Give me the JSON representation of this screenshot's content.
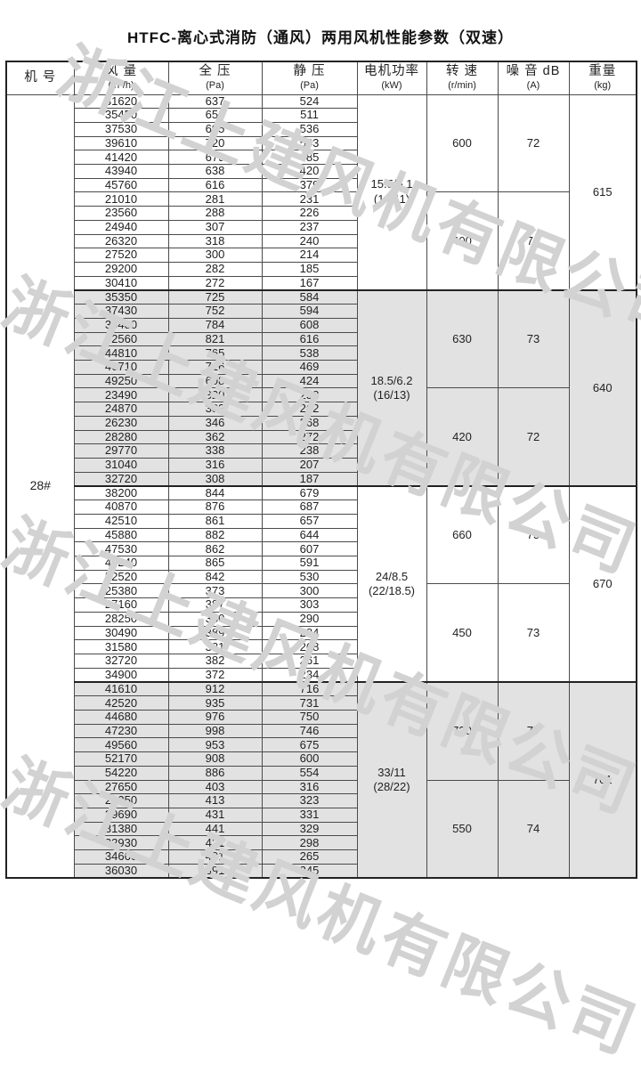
{
  "title": "HTFC-离心式消防（通风）两用风机性能参数（双速）",
  "watermark": {
    "text": "浙江上建风机有限公司"
  },
  "machine_no": "28#",
  "columns": [
    {
      "label": "机 号",
      "sub": ""
    },
    {
      "label": "风 量",
      "sub": "(m³/h)"
    },
    {
      "label": "全 压",
      "sub": "(Pa)"
    },
    {
      "label": "静 压",
      "sub": "(Pa)"
    },
    {
      "label": "电机功率",
      "sub": "(kW)"
    },
    {
      "label": "转 速",
      "sub": "(r/min)"
    },
    {
      "label": "噪 音 dB",
      "sub": "(A)"
    },
    {
      "label": "重量",
      "sub": "(kg)"
    }
  ],
  "groups": [
    {
      "shaded": false,
      "power_lines": [
        "15.5/5.1",
        "(14/11)"
      ],
      "weight": "615",
      "halves": [
        {
          "speed": "600",
          "noise": "72",
          "rows": [
            [
              "31620",
              "637",
              "524"
            ],
            [
              "35450",
              "653",
              "511"
            ],
            [
              "37530",
              "695",
              "536"
            ],
            [
              "39610",
              "720",
              "543"
            ],
            [
              "41420",
              "679",
              "485"
            ],
            [
              "43940",
              "638",
              "420"
            ],
            [
              "45760",
              "616",
              "379"
            ]
          ]
        },
        {
          "speed": "400",
          "noise": "70",
          "rows": [
            [
              "21010",
              "281",
              "231"
            ],
            [
              "23560",
              "288",
              "226"
            ],
            [
              "24940",
              "307",
              "237"
            ],
            [
              "26320",
              "318",
              "240"
            ],
            [
              "27520",
              "300",
              "214"
            ],
            [
              "29200",
              "282",
              "185"
            ],
            [
              "30410",
              "272",
              "167"
            ]
          ]
        }
      ]
    },
    {
      "shaded": true,
      "power_lines": [
        "18.5/6.2",
        "(16/13)"
      ],
      "weight": "640",
      "halves": [
        {
          "speed": "630",
          "noise": "73",
          "rows": [
            [
              "35350",
              "725",
              "584"
            ],
            [
              "37430",
              "752",
              "594"
            ],
            [
              "39480",
              "784",
              "608"
            ],
            [
              "42560",
              "821",
              "616"
            ],
            [
              "44810",
              "765",
              "538"
            ],
            [
              "46710",
              "716",
              "469"
            ],
            [
              "49250",
              "698",
              "424"
            ]
          ]
        },
        {
          "speed": "420",
          "noise": "72",
          "rows": [
            [
              "23490",
              "320",
              "258"
            ],
            [
              "24870",
              "332",
              "262"
            ],
            [
              "26230",
              "346",
              "268"
            ],
            [
              "28280",
              "362",
              "272"
            ],
            [
              "29770",
              "338",
              "238"
            ],
            [
              "31040",
              "316",
              "207"
            ],
            [
              "32720",
              "308",
              "187"
            ]
          ]
        }
      ]
    },
    {
      "shaded": false,
      "power_lines": [
        "24/8.5",
        "(22/18.5)"
      ],
      "weight": "670",
      "halves": [
        {
          "speed": "660",
          "noise": "75",
          "rows": [
            [
              "38200",
              "844",
              "679"
            ],
            [
              "40870",
              "876",
              "687"
            ],
            [
              "42510",
              "861",
              "657"
            ],
            [
              "45880",
              "882",
              "644"
            ],
            [
              "47530",
              "862",
              "607"
            ],
            [
              "49240",
              "865",
              "591"
            ],
            [
              "52520",
              "842",
              "530"
            ]
          ]
        },
        {
          "speed": "450",
          "noise": "73",
          "rows": [
            [
              "25380",
              "373",
              "300"
            ],
            [
              "27160",
              "387",
              "303"
            ],
            [
              "28250",
              "380",
              "290"
            ],
            [
              "30490",
              "389",
              "284"
            ],
            [
              "31580",
              "381",
              "268"
            ],
            [
              "32720",
              "382",
              "261"
            ],
            [
              "34900",
              "372",
              "234"
            ]
          ]
        }
      ]
    },
    {
      "shaded": true,
      "power_lines": [
        "33/11",
        "(28/22)"
      ],
      "weight": "701",
      "halves": [
        {
          "speed": "730",
          "noise": "77",
          "rows": [
            [
              "41610",
              "912",
              "716"
            ],
            [
              "42520",
              "935",
              "731"
            ],
            [
              "44680",
              "976",
              "750"
            ],
            [
              "47230",
              "998",
              "746"
            ],
            [
              "49560",
              "953",
              "675"
            ],
            [
              "52170",
              "908",
              "600"
            ],
            [
              "54220",
              "886",
              "554"
            ]
          ]
        },
        {
          "speed": "550",
          "noise": "74",
          "rows": [
            [
              "27650",
              "403",
              "316"
            ],
            [
              "28250",
              "413",
              "323"
            ],
            [
              "29690",
              "431",
              "331"
            ],
            [
              "31380",
              "441",
              "329"
            ],
            [
              "32930",
              "421",
              "298"
            ],
            [
              "34660",
              "401",
              "265"
            ],
            [
              "36030",
              "391",
              "245"
            ]
          ]
        }
      ]
    }
  ]
}
